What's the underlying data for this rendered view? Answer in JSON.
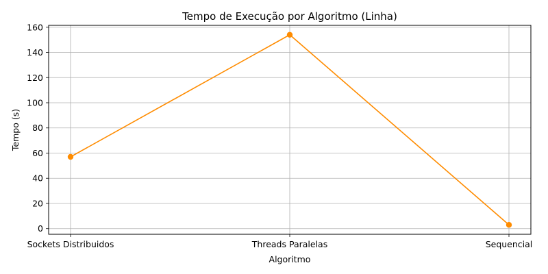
{
  "chart_data": {
    "type": "line",
    "title": "Tempo de Execução por Algoritmo (Linha)",
    "xlabel": "Algoritmo",
    "ylabel": "Tempo (s)",
    "categories": [
      "Sockets Distribuidos",
      "Threads Paralelas",
      "Sequencial"
    ],
    "series": [
      {
        "name": "Tempo",
        "values": [
          57,
          154,
          3
        ],
        "color": "#ff8c00"
      }
    ],
    "ylim": [
      -4.5,
      161.5
    ],
    "yticks": [
      0,
      20,
      40,
      60,
      80,
      100,
      120,
      140,
      160
    ],
    "grid": true,
    "marker": "circle"
  }
}
